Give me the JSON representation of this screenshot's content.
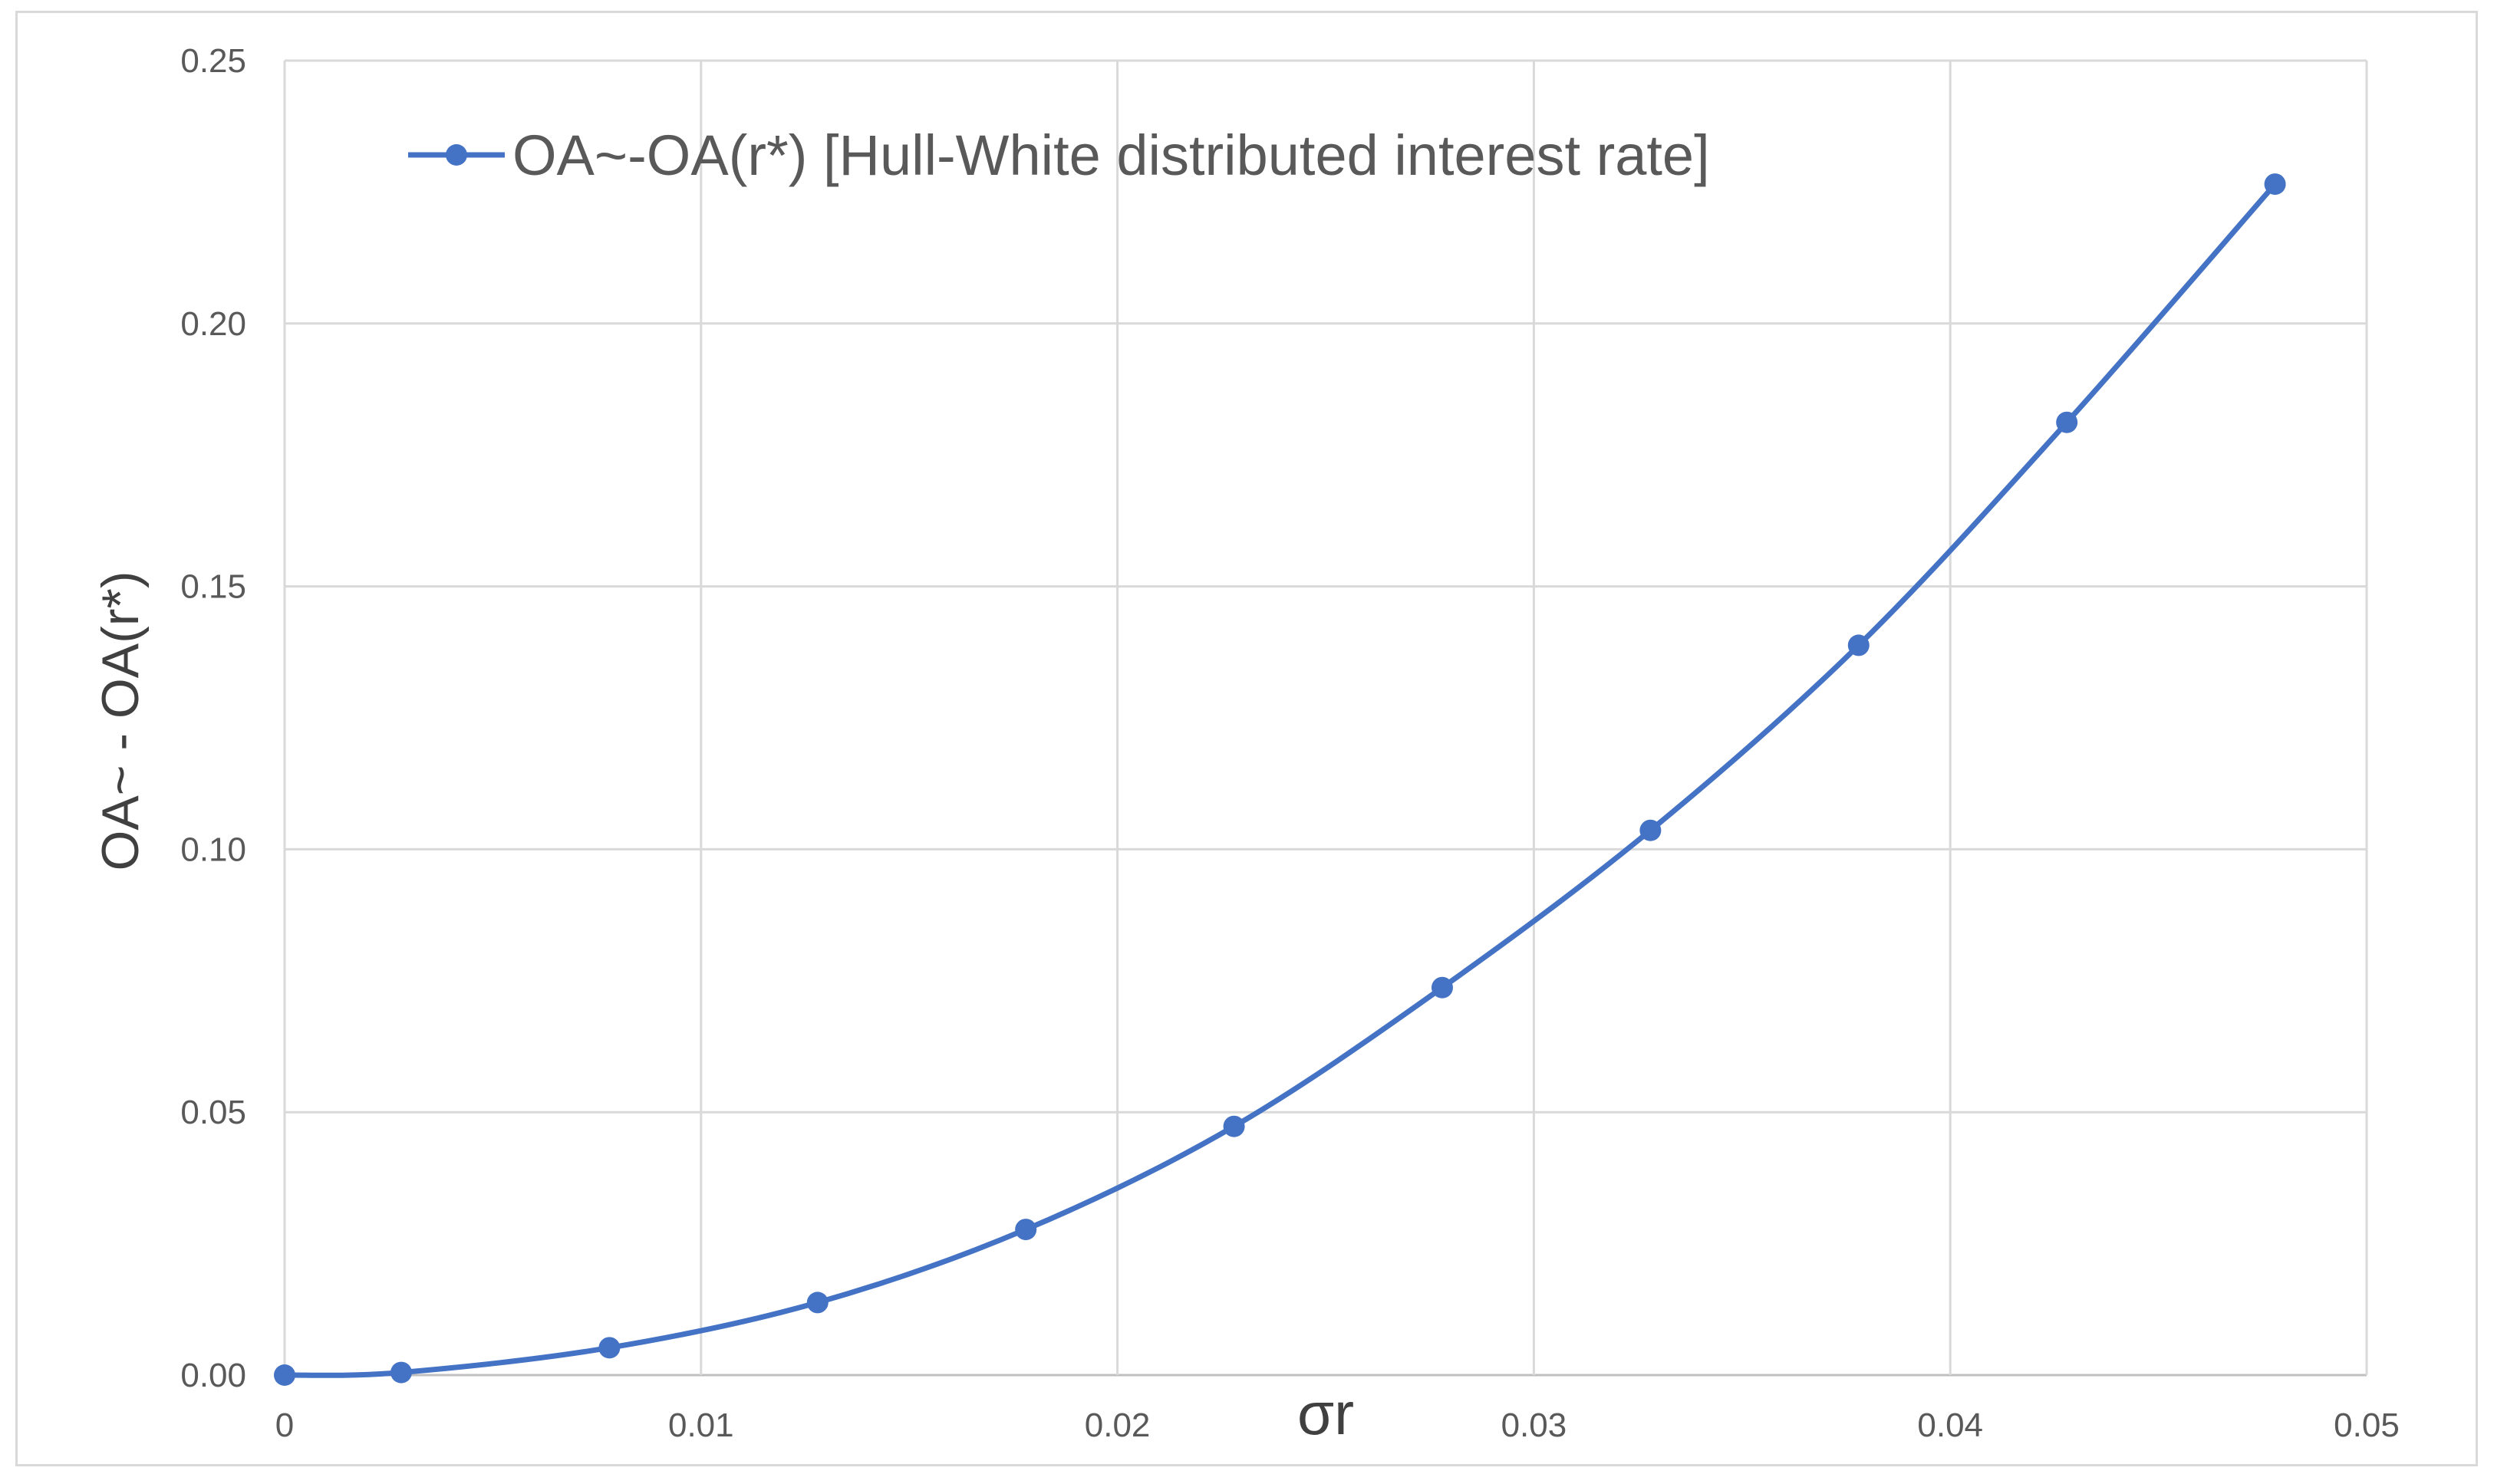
{
  "chart_data": {
    "type": "line",
    "title": "",
    "xlabel": "σr",
    "ylabel": "OA~ - OA(r*)",
    "xlim": [
      0,
      0.05
    ],
    "ylim": [
      0,
      0.25
    ],
    "x_ticks": [
      "0",
      "0.01",
      "0.02",
      "0.03",
      "0.04",
      "0.05"
    ],
    "y_ticks": [
      "0.00",
      "0.05",
      "0.10",
      "0.15",
      "0.20",
      "0.25"
    ],
    "grid": true,
    "legend_position": "top-left",
    "series": [
      {
        "name": "OA~-OA(r*) [Hull-White distributed interest rate]",
        "color": "#4472c4",
        "marker": "circle",
        "smooth": true,
        "x": [
          0,
          0.0028,
          0.0078,
          0.0128,
          0.0178,
          0.0228,
          0.0278,
          0.0328,
          0.0378,
          0.0428,
          0.0478
        ],
        "y": [
          0.0,
          0.0005,
          0.0052,
          0.0138,
          0.0277,
          0.0473,
          0.0737,
          0.1036,
          0.1388,
          0.1812,
          0.2265
        ]
      }
    ]
  }
}
